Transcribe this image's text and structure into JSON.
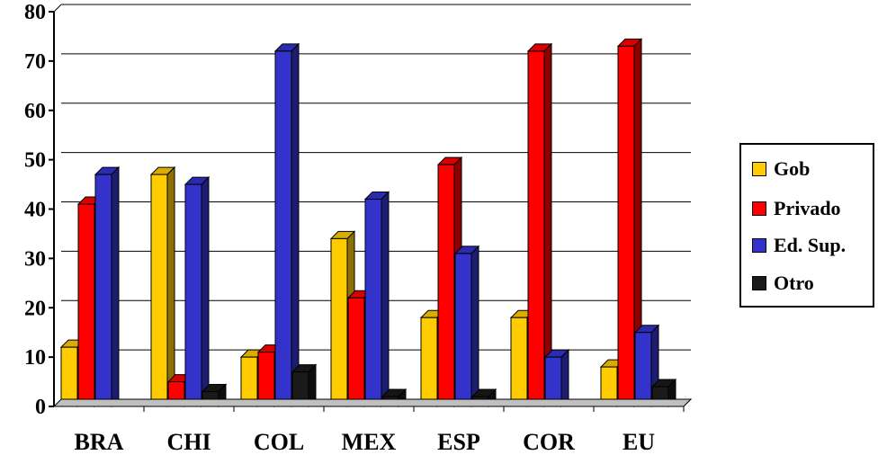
{
  "chart_data": {
    "type": "bar",
    "categories": [
      "BRA",
      "CHI",
      "COL",
      "MEX",
      "ESP",
      "COR",
      "EU"
    ],
    "series": [
      {
        "name": "Gob",
        "values": [
          12,
          47,
          10,
          34,
          18,
          18,
          8
        ],
        "color": "#FFCC00"
      },
      {
        "name": "Privado",
        "values": [
          41,
          5,
          11,
          22,
          49,
          72,
          73
        ],
        "color": "#FF0000"
      },
      {
        "name": "Ed. Sup.",
        "values": [
          47,
          45,
          72,
          42,
          31,
          10,
          15
        ],
        "color": "#3333CC"
      },
      {
        "name": "Otro",
        "values": [
          0,
          3,
          7,
          2,
          2,
          0,
          4
        ],
        "color": "#1A1A1A"
      }
    ],
    "yticks": [
      "0",
      "10",
      "20",
      "30",
      "40",
      "50",
      "60",
      "70",
      "80"
    ],
    "ylim": [
      0,
      80
    ],
    "grid": true,
    "legend_position": "right",
    "three_d": true
  }
}
